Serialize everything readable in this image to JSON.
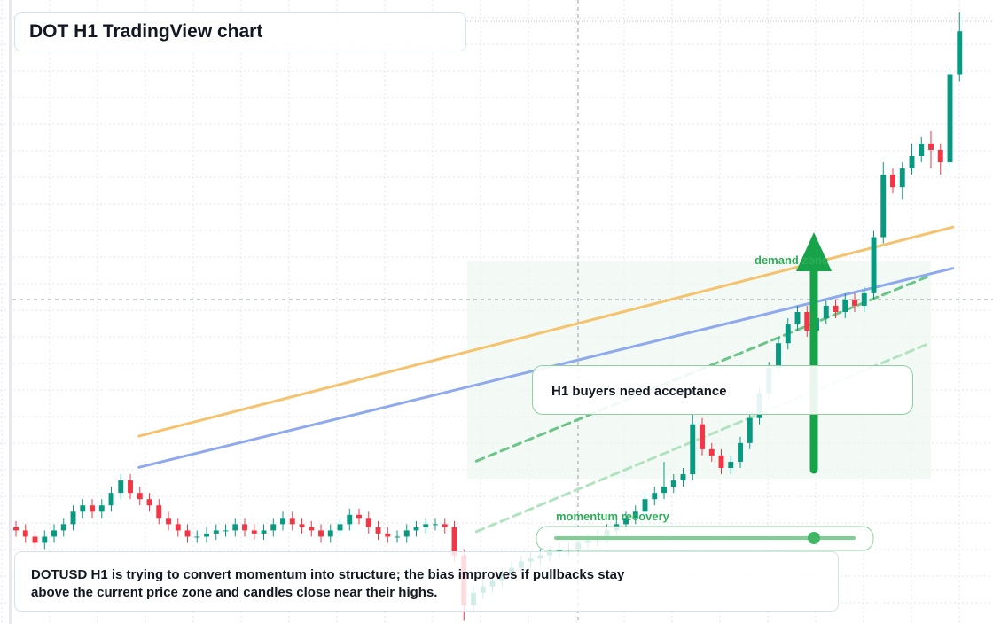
{
  "chart_data": {
    "type": "candlestick",
    "title": "DOT H1 TradingView chart",
    "zone_label": "demand zone",
    "callout": "H1 buyers need acceptance",
    "slider_label": "momentum recovery",
    "note": "DOTUSD H1 is trying to convert momentum into structure; the bias improves if pullbacks stay above the current price zone and candles close near their highs.",
    "up_color": "#089981",
    "down_color": "#f23645",
    "xlim": [
      -0.56,
      99.72
    ],
    "ylim": [
      0,
      100
    ],
    "open": [
      15.5,
      15,
      14,
      13,
      14,
      15,
      16,
      18,
      19,
      18,
      19,
      21,
      23,
      21,
      20,
      19,
      17,
      16,
      15,
      14,
      14,
      14.5,
      15,
      15,
      16,
      15,
      14.5,
      15,
      16,
      17,
      16,
      15.5,
      15,
      14,
      15,
      16,
      17.5,
      17,
      15.5,
      14.5,
      14,
      14,
      15,
      15.5,
      16,
      16,
      15.5,
      11,
      3,
      5,
      6,
      7,
      8,
      9,
      10,
      10.5,
      11,
      11.5,
      12,
      12,
      13,
      13.5,
      14,
      15,
      16,
      17,
      18,
      20,
      21,
      22,
      23,
      24,
      32,
      28,
      27,
      25,
      26,
      29,
      33,
      37,
      41,
      45,
      48,
      50,
      47,
      49,
      51,
      50,
      52,
      51,
      53,
      62,
      72,
      70,
      73,
      75,
      77,
      76,
      74,
      88
    ],
    "high": [
      16.5,
      16,
      15,
      15,
      16,
      17,
      19,
      20,
      20,
      20,
      22,
      24,
      24,
      22,
      21,
      20,
      18,
      17,
      16,
      15,
      15.5,
      16,
      16,
      17,
      17,
      16,
      16,
      17,
      18,
      18,
      17,
      16.5,
      16,
      16,
      17,
      18.5,
      18.5,
      18,
      16.5,
      15.5,
      15,
      16,
      16.5,
      17,
      17,
      17,
      16.5,
      12,
      6,
      7,
      8,
      9,
      10,
      11,
      11.5,
      12,
      12.5,
      13,
      13,
      14,
      14.5,
      15,
      16,
      17,
      18,
      19,
      21,
      22,
      26,
      24,
      25,
      34,
      33,
      29,
      28,
      27,
      30,
      34,
      38,
      42,
      46,
      49,
      51,
      51,
      50,
      52,
      52,
      53,
      53,
      54,
      63,
      74,
      73,
      74,
      77,
      78,
      79,
      77,
      89,
      98
    ],
    "low": [
      14,
      13,
      12,
      12,
      13,
      14,
      15,
      17,
      17,
      17,
      18,
      20,
      20,
      19,
      18,
      16,
      15,
      14,
      13,
      13,
      13,
      13.5,
      14,
      14,
      14,
      13.5,
      13.5,
      14,
      15,
      15,
      14.5,
      14,
      13,
      13,
      14,
      15,
      16,
      14.5,
      13.5,
      13,
      13,
      13,
      14,
      14.5,
      15,
      14.5,
      10,
      0.5,
      2,
      4,
      5,
      6,
      7,
      8,
      9,
      9.5,
      10,
      10.5,
      11,
      11,
      12,
      12.5,
      13,
      14,
      15,
      16,
      17,
      19,
      20,
      21,
      22,
      23,
      27,
      26,
      24,
      24,
      25,
      28,
      32,
      36,
      40,
      44,
      47,
      46,
      46,
      48,
      49,
      49,
      50,
      50,
      52,
      61,
      69,
      68,
      72,
      74,
      73,
      72,
      73,
      87
    ],
    "close": [
      15,
      14,
      13,
      14,
      15,
      16,
      18,
      19,
      18,
      19,
      21,
      23,
      21,
      20,
      19,
      17,
      16,
      15,
      14,
      14,
      14.5,
      15,
      15,
      16,
      15,
      14.5,
      15,
      16,
      17,
      16,
      15.5,
      15,
      14,
      15,
      16,
      17.5,
      17,
      15.5,
      14.5,
      14,
      14,
      15,
      15.5,
      16,
      16,
      15.5,
      11,
      3,
      5,
      6,
      7,
      8,
      9,
      10,
      10.5,
      11,
      11.5,
      12,
      12,
      13,
      13.5,
      14,
      15,
      16,
      17,
      18,
      20,
      21,
      22,
      23,
      24,
      32,
      28,
      27,
      25,
      26,
      29,
      33,
      37,
      41,
      45,
      48,
      50,
      47,
      49,
      51,
      50,
      52,
      51,
      53,
      62,
      72,
      70,
      73,
      75,
      77,
      76,
      74,
      88,
      95
    ],
    "lines": [
      {
        "color": "#f5c26e",
        "style": "solid",
        "x": [
          12.9,
          98.3
        ],
        "y": [
          30.1,
          63.6
        ]
      },
      {
        "color": "#8ea9ee",
        "style": "solid",
        "x": [
          12.9,
          98.3
        ],
        "y": [
          25.1,
          57
        ]
      },
      {
        "color": "#6cc488",
        "style": "dashed",
        "x": [
          48.3,
          95.7
        ],
        "y": [
          26.1,
          55.7
        ]
      },
      {
        "color": "#b2e3c0",
        "style": "dashed",
        "x": [
          48.3,
          95.7
        ],
        "y": [
          14.8,
          44.9
        ]
      }
    ]
  }
}
